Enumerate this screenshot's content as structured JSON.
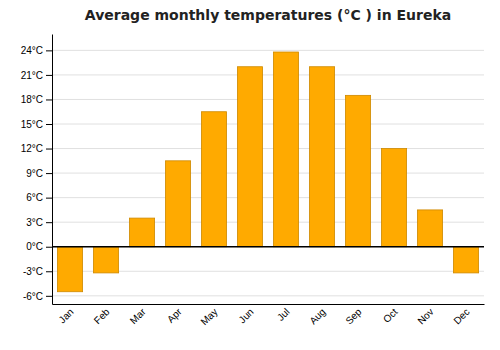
{
  "chart_data": {
    "type": "bar",
    "title": "Average monthly temperatures (°C ) in Eureka",
    "categories": [
      "Jan",
      "Feb",
      "Mar",
      "Apr",
      "May",
      "Jun",
      "Jul",
      "Aug",
      "Sep",
      "Oct",
      "Nov",
      "Dec"
    ],
    "values": [
      -5.5,
      -3.2,
      3.5,
      10.5,
      16.5,
      22.0,
      23.8,
      22.0,
      18.5,
      12.0,
      4.5,
      -3.2
    ],
    "color": "#FFAA00",
    "ylim": [
      -7,
      26
    ],
    "yticks": [
      {
        "value": -6,
        "label": "-6°C"
      },
      {
        "value": -3,
        "label": "-3°C"
      },
      {
        "value": 0,
        "label": "0°C"
      },
      {
        "value": 3,
        "label": "3°C"
      },
      {
        "value": 6,
        "label": "6°C"
      },
      {
        "value": 9,
        "label": "9°C"
      },
      {
        "value": 12,
        "label": "12°C"
      },
      {
        "value": 15,
        "label": "15°C"
      },
      {
        "value": 18,
        "label": "18°C"
      },
      {
        "value": 21,
        "label": "21°C"
      },
      {
        "value": 24,
        "label": "24°C"
      }
    ],
    "grid": true
  }
}
